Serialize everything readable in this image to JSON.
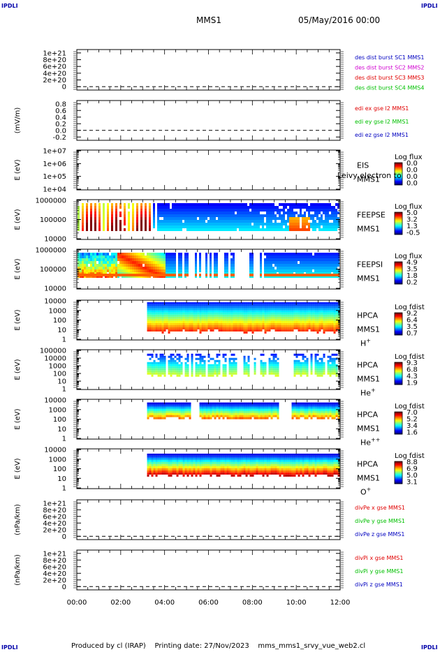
{
  "corner_labels": {
    "tl": "IPDLI",
    "tr": "IPDLI",
    "bl": "IPDLI",
    "br": "IPDLI"
  },
  "header": {
    "mission": "MMS1",
    "date": "05/May/2016 00:00"
  },
  "footer": {
    "text": "Produced by cl (IRAP)    Printing date: 27/Nov/2023    mms_mms1_srvy_vue_web2.cl"
  },
  "x_axis": {
    "ticks": [
      "00:00",
      "02:00",
      "04:00",
      "06:00",
      "08:00",
      "10:00",
      "12:00"
    ],
    "range_hours": [
      0,
      12
    ]
  },
  "colors": {
    "red": "#e00000",
    "magenta": "#d000d0",
    "green": "#00c000",
    "blue": "#0000c0"
  },
  "chart_data": [
    {
      "id": "p1",
      "type": "line",
      "ylabel": "",
      "ylim": [
        -1e+20,
        1.1e+21
      ],
      "yticks": [
        "1e+21",
        "8e+20",
        "6e+20",
        "4e+20",
        "2e+20",
        "0"
      ],
      "series": [
        {
          "name": "des dist burst SC1 MMS1",
          "color": "#0000c0",
          "values": []
        },
        {
          "name": "des dist burst SC2 MMS2",
          "color": "#d000d0",
          "values": []
        },
        {
          "name": "des dist burst SC3 MMS3",
          "color": "#e00000",
          "values": []
        },
        {
          "name": "des dist burst SC4 MMS4",
          "color": "#00c000",
          "values": []
        }
      ]
    },
    {
      "id": "p2",
      "type": "line",
      "ylabel": "(mV/m)",
      "ylim": [
        -0.3,
        0.9
      ],
      "yticks": [
        "0.8",
        "0.6",
        "0.4",
        "0.2",
        "0.0",
        "-0.2"
      ],
      "series": [
        {
          "name": "edi ex gse l2 MMS1",
          "color": "#e00000",
          "values": []
        },
        {
          "name": "edi ey gse l2 MMS1",
          "color": "#00c000",
          "values": []
        },
        {
          "name": "edi ez gse l2 MMS1",
          "color": "#0000c0",
          "values": []
        }
      ]
    },
    {
      "id": "p3",
      "type": "heatmap",
      "ylabel": "E (eV)",
      "yticks": [
        "1e+07",
        "1e+06",
        "1e+05",
        "1e+04"
      ],
      "instrument": [
        "EIS",
        "MMS1"
      ],
      "overlay": "Leivy electron to",
      "colorbar": {
        "title": "Log flux",
        "ticks": [
          "0.0",
          "0.0",
          "0.0",
          "0.0"
        ]
      }
    },
    {
      "id": "p4",
      "type": "heatmap",
      "ylabel": "E (eV)",
      "yticks": [
        "1000000",
        "100000",
        "10000"
      ],
      "instrument": [
        "FEEPSE",
        "MMS1"
      ],
      "colorbar": {
        "title": "Log flux",
        "ticks": [
          "5.0",
          "3.2",
          "1.3",
          "-0.5"
        ]
      }
    },
    {
      "id": "p5",
      "type": "heatmap",
      "ylabel": "E (eV)",
      "yticks": [
        "1000000",
        "100000",
        "10000"
      ],
      "instrument": [
        "FEEPSI",
        "MMS1"
      ],
      "colorbar": {
        "title": "Log flux",
        "ticks": [
          "4.9",
          "3.5",
          "1.8",
          "0.2"
        ]
      }
    },
    {
      "id": "p6",
      "type": "heatmap",
      "ylabel": "E (eV)",
      "yticks": [
        "10000",
        "1000",
        "100",
        "10",
        "1"
      ],
      "instrument": [
        "HPCA",
        "MMS1"
      ],
      "species": "H",
      "species_sup": "+",
      "colorbar": {
        "title": "Log fdist",
        "ticks": [
          "9.2",
          "6.4",
          "3.5",
          "0.7"
        ]
      }
    },
    {
      "id": "p7",
      "type": "heatmap",
      "ylabel": "E (eV)",
      "yticks": [
        "100000",
        "10000",
        "1000",
        "100",
        "10",
        "1"
      ],
      "instrument": [
        "HPCA",
        "MMS1"
      ],
      "species": "He",
      "species_sup": "+",
      "colorbar": {
        "title": "Log fdist",
        "ticks": [
          "9.3",
          "6.8",
          "4.3",
          "1.9"
        ]
      }
    },
    {
      "id": "p8",
      "type": "heatmap",
      "ylabel": "E (eV)",
      "yticks": [
        "10000",
        "1000",
        "100",
        "10",
        "1"
      ],
      "instrument": [
        "HPCA",
        "MMS1"
      ],
      "species": "He",
      "species_sup": "++",
      "colorbar": {
        "title": "Log fdist",
        "ticks": [
          "7.0",
          "5.2",
          "3.4",
          "1.6"
        ]
      }
    },
    {
      "id": "p9",
      "type": "heatmap",
      "ylabel": "E (eV)",
      "yticks": [
        "10000",
        "1000",
        "100",
        "10",
        "1"
      ],
      "instrument": [
        "HPCA",
        "MMS1"
      ],
      "species": "O",
      "species_sup": "+",
      "colorbar": {
        "title": "Log fdist",
        "ticks": [
          "8.8",
          "6.9",
          "5.0",
          "3.1"
        ]
      }
    },
    {
      "id": "p10",
      "type": "line",
      "ylabel": "(nPa/km)",
      "ylim": [
        -1e+20,
        1.1e+21
      ],
      "yticks": [
        "1e+21",
        "8e+20",
        "6e+20",
        "4e+20",
        "2e+20",
        "0"
      ],
      "series": [
        {
          "name": "divPe x gse MMS1",
          "color": "#e00000",
          "values": []
        },
        {
          "name": "divPe y gse MMS1",
          "color": "#00c000",
          "values": []
        },
        {
          "name": "divPe z gse MMS1",
          "color": "#0000c0",
          "values": []
        }
      ]
    },
    {
      "id": "p11",
      "type": "line",
      "ylabel": "(nPa/km)",
      "ylim": [
        -1e+20,
        1.1e+21
      ],
      "yticks": [
        "1e+21",
        "8e+20",
        "6e+20",
        "4e+20",
        "2e+20",
        "0"
      ],
      "series": [
        {
          "name": "divPi x gse MMS1",
          "color": "#e00000",
          "values": []
        },
        {
          "name": "divPi y gse MMS1",
          "color": "#00c000",
          "values": []
        },
        {
          "name": "divPi z gse MMS1",
          "color": "#0000c0",
          "values": []
        }
      ]
    }
  ]
}
